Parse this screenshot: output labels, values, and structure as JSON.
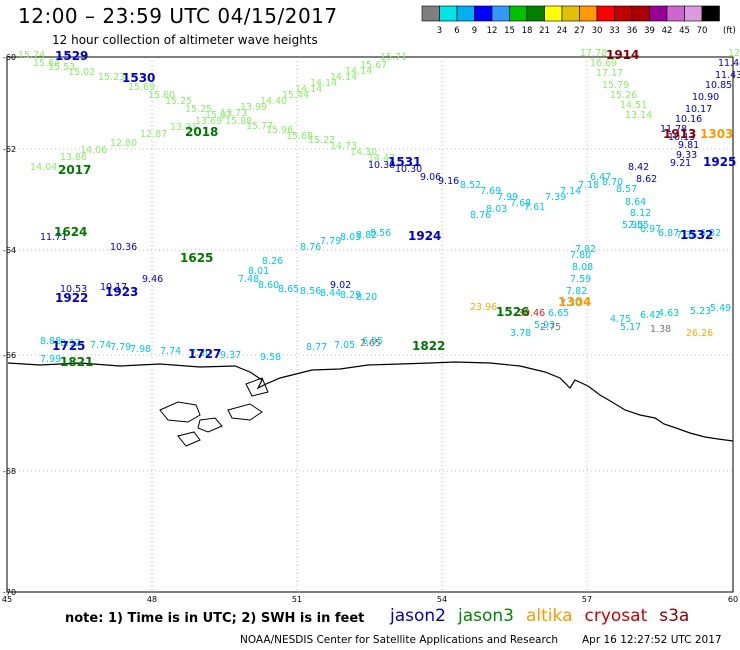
{
  "title": "12:00 – 23:59 UTC 04/15/2017",
  "subtitle": "12 hour collection of altimeter wave heights",
  "colorbar": {
    "unit": "(ft)",
    "colors": [
      "#7f7f7f",
      "#00e5e5",
      "#00b0f0",
      "#0000ff",
      "#3399ff",
      "#00c000",
      "#008000",
      "#ffff00",
      "#e0c000",
      "#ff9900",
      "#ff0000",
      "#c00000",
      "#aa0000",
      "#990099",
      "#cc66cc",
      "#dd99dd",
      "#000000"
    ],
    "labels": [
      "3",
      "6",
      "9",
      "12",
      "15",
      "18",
      "21",
      "24",
      "27",
      "30",
      "33",
      "36",
      "39",
      "42",
      "45",
      "70"
    ]
  },
  "axes": {
    "lat_labels": [
      "-60",
      "-62",
      "-64",
      "-66",
      "-68",
      "-70"
    ],
    "lon_labels": [
      "45",
      "48",
      "51",
      "54",
      "57",
      "60"
    ]
  },
  "tracks": [
    {
      "sat": "jason3",
      "color": "#88ee66",
      "values": [
        "15.74",
        "15.64",
        "15.53",
        "15.02",
        "15.23",
        "15.69",
        "15.60",
        "15.25",
        "15.25",
        "15.07",
        "15.88",
        "15.77",
        "15.96",
        "15.68",
        "15.22",
        "14.73",
        "14.30",
        "14.43"
      ]
    },
    {
      "sat": "jason3",
      "color": "#88ee66",
      "values": [
        "15.71",
        "15.67",
        "14.14",
        "14.14",
        "14.14",
        "14.14",
        "15.44",
        "14.40",
        "13.99",
        "13.73",
        "13.69",
        "13.31",
        "12.87",
        "12.80",
        "14.06",
        "13.86",
        "14.04"
      ]
    },
    {
      "sat": "jason3",
      "color": "#88ee66",
      "values": [
        "17.78",
        "16.69",
        "17.17",
        "15.79",
        "15.26",
        "14.51",
        "13.14",
        "12.17"
      ]
    },
    {
      "sat": "cyan",
      "color": "#00c8e8",
      "values": [
        "8.52",
        "7.69",
        "7.99",
        "7.68",
        "7.61",
        "7.39",
        "7.14",
        "7.18",
        "6.47",
        "8.70",
        "8.57",
        "8.64",
        "8.12",
        "7.55",
        "5.90",
        "6.97",
        "6.87",
        "7.36",
        "6.32"
      ]
    },
    {
      "sat": "cyan",
      "color": "#00c8e8",
      "values": [
        "8.76",
        "8.03",
        "7.82",
        "7.80",
        "8.08",
        "7.59",
        "7.82",
        "7.30",
        "6.65",
        "5.93",
        "3.78",
        "4.75",
        "5.17",
        "6.42",
        "4.63",
        "5.23",
        "5.49"
      ]
    },
    {
      "sat": "cyan",
      "color": "#00c8e8",
      "values": [
        "8.76",
        "7.79",
        "8.03",
        "8.82",
        "8.56",
        "8.26",
        "8.01",
        "7.48",
        "8.60",
        "8.65",
        "8.56",
        "8.44",
        "8.29",
        "8.20"
      ]
    },
    {
      "sat": "cyan",
      "color": "#00c8e8",
      "values": [
        "8.88",
        "8.12",
        "7.74",
        "7.79",
        "7.98",
        "7.74",
        "7.30",
        "9.37",
        "9.58",
        "8.77",
        "7.05",
        "6.95",
        "7.99"
      ]
    },
    {
      "sat": "blue",
      "color": "#0000cc",
      "values": [
        "10.38",
        "10.30",
        "9.06",
        "9.16",
        "11.71",
        "10.36",
        "9.46",
        "10.17",
        "10.53",
        "9.02",
        "11.78",
        "10.13",
        "9.81",
        "9.33",
        "9.21",
        "8.42",
        "8.62",
        "11.48",
        "11.43",
        "10.85",
        "10.90",
        "10.17",
        "10.16"
      ]
    },
    {
      "sat": "other",
      "color": "#777777",
      "values": [
        "2.65",
        "2.75",
        "1.38"
      ]
    },
    {
      "sat": "altika",
      "color": "#ffaa00",
      "values": [
        "23.96",
        "26.26"
      ]
    },
    {
      "sat": "cryosat",
      "color": "#dd2222",
      "values": [
        "30.46"
      ]
    }
  ],
  "pass_labels": [
    {
      "text": "1529",
      "color": "#0000cc"
    },
    {
      "text": "1530",
      "color": "#0000cc"
    },
    {
      "text": "2018",
      "color": "#007700"
    },
    {
      "text": "2017",
      "color": "#007700"
    },
    {
      "text": "1914",
      "color": "#880000"
    },
    {
      "text": "1913",
      "color": "#880000"
    },
    {
      "text": "1303",
      "color": "#ff9900"
    },
    {
      "text": "1925",
      "color": "#0000cc"
    },
    {
      "text": "1531",
      "color": "#0000cc"
    },
    {
      "text": "1924",
      "color": "#0000cc"
    },
    {
      "text": "1532",
      "color": "#0000cc"
    },
    {
      "text": "1624",
      "color": "#007700"
    },
    {
      "text": "1625",
      "color": "#007700"
    },
    {
      "text": "1923",
      "color": "#0000cc"
    },
    {
      "text": "1922",
      "color": "#0000cc"
    },
    {
      "text": "1526",
      "color": "#007700"
    },
    {
      "text": "1304",
      "color": "#ff9900"
    },
    {
      "text": "1725",
      "color": "#0000cc"
    },
    {
      "text": "1727",
      "color": "#0000cc"
    },
    {
      "text": "1822",
      "color": "#007700"
    },
    {
      "text": "1821",
      "color": "#007700"
    }
  ],
  "note": "note:  1) Time is in UTC;  2) SWH is in feet",
  "legend": [
    {
      "name": "jason2",
      "color": "#0000cc"
    },
    {
      "name": "jason3",
      "color": "#008800"
    },
    {
      "name": "altika",
      "color": "#ff9900"
    },
    {
      "name": "cryosat",
      "color": "#cc0000"
    },
    {
      "name": "s3a",
      "color": "#880000"
    }
  ],
  "credit": "NOAA/NESDIS Center for Satellite Applications and Research",
  "timestamp": "Apr 16 12:27:52 UTC 2017"
}
